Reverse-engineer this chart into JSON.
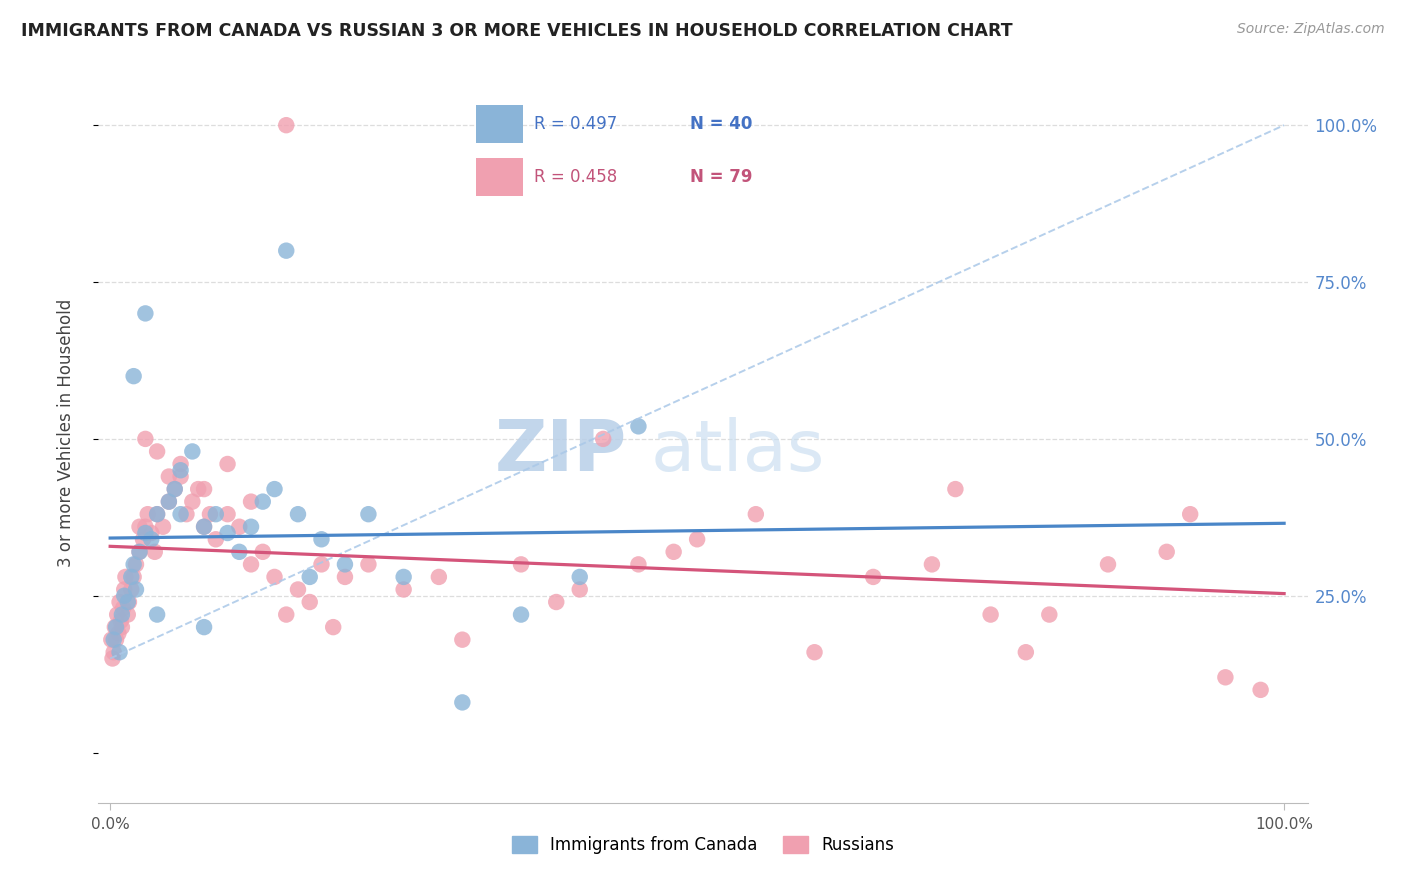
{
  "title": "IMMIGRANTS FROM CANADA VS RUSSIAN 3 OR MORE VEHICLES IN HOUSEHOLD CORRELATION CHART",
  "source": "Source: ZipAtlas.com",
  "ylabel": "3 or more Vehicles in Household",
  "legend_label1": "Immigrants from Canada",
  "legend_label2": "Russians",
  "r1_text": "R = 0.497",
  "n1_text": "N = 40",
  "r2_text": "R = 0.458",
  "n2_text": "N = 79",
  "blue_scatter": "#8ab4d8",
  "pink_scatter": "#f0a0b0",
  "blue_line": "#4a86c8",
  "pink_line": "#d4547a",
  "dashed_color": "#aac8e8",
  "right_tick_color": "#5588cc",
  "grid_color": "#dddddd",
  "watermark_color": "#ccddf0",
  "canada_x": [
    0.3,
    0.5,
    0.8,
    1.0,
    1.2,
    1.5,
    1.8,
    2.0,
    2.2,
    2.5,
    3.0,
    3.5,
    4.0,
    5.0,
    5.5,
    6.0,
    7.0,
    8.0,
    9.0,
    10.0,
    11.0,
    12.0,
    13.0,
    14.0,
    15.0,
    16.0,
    17.0,
    18.0,
    20.0,
    22.0,
    2.0,
    3.0,
    4.0,
    6.0,
    8.0,
    35.0,
    40.0,
    25.0,
    30.0,
    45.0
  ],
  "canada_y": [
    18.0,
    20.0,
    16.0,
    22.0,
    25.0,
    24.0,
    28.0,
    30.0,
    26.0,
    32.0,
    35.0,
    34.0,
    38.0,
    40.0,
    42.0,
    45.0,
    48.0,
    36.0,
    38.0,
    35.0,
    32.0,
    36.0,
    40.0,
    42.0,
    80.0,
    38.0,
    28.0,
    34.0,
    30.0,
    38.0,
    60.0,
    70.0,
    22.0,
    38.0,
    20.0,
    22.0,
    28.0,
    28.0,
    8.0,
    52.0
  ],
  "russia_x": [
    0.1,
    0.2,
    0.3,
    0.4,
    0.5,
    0.6,
    0.7,
    0.8,
    0.9,
    1.0,
    1.1,
    1.2,
    1.3,
    1.5,
    1.6,
    1.8,
    2.0,
    2.2,
    2.5,
    2.8,
    3.0,
    3.2,
    3.5,
    3.8,
    4.0,
    4.5,
    5.0,
    5.5,
    6.0,
    6.5,
    7.0,
    7.5,
    8.0,
    8.5,
    9.0,
    10.0,
    11.0,
    12.0,
    13.0,
    14.0,
    15.0,
    16.0,
    17.0,
    18.0,
    19.0,
    20.0,
    22.0,
    25.0,
    28.0,
    30.0,
    35.0,
    38.0,
    40.0,
    42.0,
    45.0,
    48.0,
    50.0,
    55.0,
    60.0,
    65.0,
    70.0,
    72.0,
    75.0,
    78.0,
    80.0,
    85.0,
    90.0,
    92.0,
    95.0,
    98.0,
    5.0,
    6.0,
    8.0,
    10.0,
    12.0,
    3.0,
    4.0,
    2.5,
    15.0
  ],
  "russia_y": [
    18.0,
    15.0,
    16.0,
    20.0,
    18.0,
    22.0,
    19.0,
    24.0,
    21.0,
    20.0,
    23.0,
    26.0,
    28.0,
    22.0,
    24.0,
    26.0,
    28.0,
    30.0,
    32.0,
    34.0,
    36.0,
    38.0,
    35.0,
    32.0,
    38.0,
    36.0,
    40.0,
    42.0,
    44.0,
    38.0,
    40.0,
    42.0,
    36.0,
    38.0,
    34.0,
    38.0,
    36.0,
    30.0,
    32.0,
    28.0,
    22.0,
    26.0,
    24.0,
    30.0,
    20.0,
    28.0,
    30.0,
    26.0,
    28.0,
    18.0,
    30.0,
    24.0,
    26.0,
    50.0,
    30.0,
    32.0,
    34.0,
    38.0,
    16.0,
    28.0,
    30.0,
    42.0,
    22.0,
    16.0,
    22.0,
    30.0,
    32.0,
    38.0,
    12.0,
    10.0,
    44.0,
    46.0,
    42.0,
    46.0,
    40.0,
    50.0,
    48.0,
    36.0,
    100.0
  ]
}
